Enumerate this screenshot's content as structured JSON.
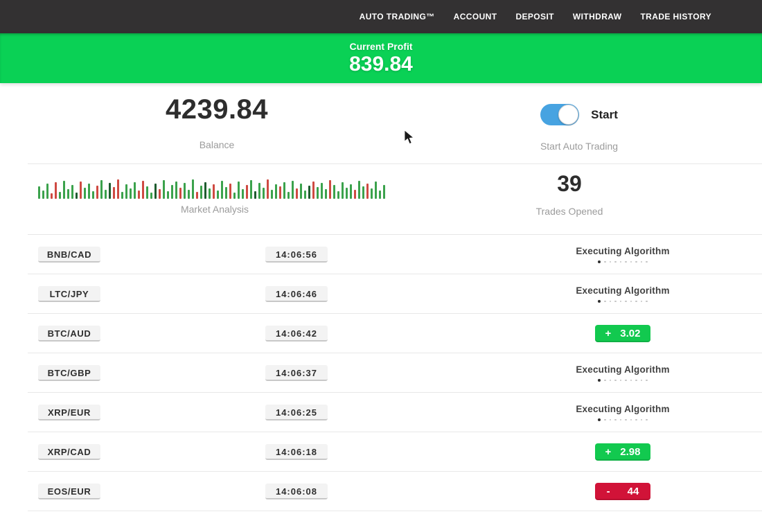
{
  "nav": {
    "items": [
      {
        "label": "AUTO TRADING™",
        "name": "auto-trading"
      },
      {
        "label": "ACCOUNT",
        "name": "account"
      },
      {
        "label": "DEPOSIT",
        "name": "deposit"
      },
      {
        "label": "WITHDRAW",
        "name": "withdraw"
      },
      {
        "label": "TRADE HISTORY",
        "name": "trade-history"
      }
    ]
  },
  "banner": {
    "label": "Current Profit",
    "value": "839.84"
  },
  "stats": {
    "balance": {
      "value": "4239.84",
      "label": "Balance"
    },
    "auto_trading": {
      "toggle_state": "on",
      "toggle_label": "Start",
      "label": "Start Auto Trading"
    },
    "trades_opened": {
      "value": "39",
      "label": "Trades Opened"
    }
  },
  "market_analysis": {
    "label": "Market Analysis",
    "bars": [
      [
        18,
        "g"
      ],
      [
        12,
        "g"
      ],
      [
        22,
        "g"
      ],
      [
        8,
        "r"
      ],
      [
        24,
        "r"
      ],
      [
        10,
        "g"
      ],
      [
        26,
        "g"
      ],
      [
        14,
        "g"
      ],
      [
        20,
        "g"
      ],
      [
        9,
        "d"
      ],
      [
        25,
        "r"
      ],
      [
        16,
        "g"
      ],
      [
        22,
        "g"
      ],
      [
        11,
        "g"
      ],
      [
        19,
        "r"
      ],
      [
        27,
        "g"
      ],
      [
        13,
        "g"
      ],
      [
        23,
        "d"
      ],
      [
        17,
        "r"
      ],
      [
        28,
        "r"
      ],
      [
        10,
        "g"
      ],
      [
        21,
        "g"
      ],
      [
        15,
        "g"
      ],
      [
        24,
        "g"
      ],
      [
        12,
        "r"
      ],
      [
        26,
        "r"
      ],
      [
        18,
        "g"
      ],
      [
        9,
        "g"
      ],
      [
        22,
        "d"
      ],
      [
        14,
        "r"
      ],
      [
        27,
        "g"
      ],
      [
        11,
        "g"
      ],
      [
        20,
        "g"
      ],
      [
        25,
        "g"
      ],
      [
        16,
        "r"
      ],
      [
        23,
        "g"
      ],
      [
        13,
        "g"
      ],
      [
        28,
        "g"
      ],
      [
        10,
        "r"
      ],
      [
        19,
        "g"
      ],
      [
        24,
        "d"
      ],
      [
        15,
        "g"
      ],
      [
        21,
        "r"
      ],
      [
        12,
        "g"
      ],
      [
        26,
        "g"
      ],
      [
        17,
        "g"
      ],
      [
        22,
        "r"
      ],
      [
        9,
        "g"
      ],
      [
        25,
        "g"
      ],
      [
        14,
        "g"
      ],
      [
        20,
        "r"
      ],
      [
        27,
        "g"
      ],
      [
        11,
        "d"
      ],
      [
        23,
        "g"
      ],
      [
        16,
        "g"
      ],
      [
        28,
        "r"
      ],
      [
        13,
        "g"
      ],
      [
        21,
        "g"
      ],
      [
        18,
        "r"
      ],
      [
        24,
        "g"
      ],
      [
        10,
        "g"
      ],
      [
        26,
        "g"
      ],
      [
        15,
        "r"
      ],
      [
        22,
        "g"
      ],
      [
        12,
        "g"
      ],
      [
        19,
        "d"
      ],
      [
        25,
        "r"
      ],
      [
        17,
        "g"
      ],
      [
        23,
        "g"
      ],
      [
        14,
        "g"
      ],
      [
        27,
        "r"
      ],
      [
        20,
        "g"
      ],
      [
        11,
        "g"
      ],
      [
        24,
        "g"
      ],
      [
        16,
        "g"
      ],
      [
        21,
        "g"
      ],
      [
        13,
        "r"
      ],
      [
        26,
        "g"
      ],
      [
        18,
        "g"
      ],
      [
        22,
        "r"
      ],
      [
        15,
        "g"
      ],
      [
        25,
        "g"
      ],
      [
        12,
        "g"
      ],
      [
        20,
        "g"
      ]
    ]
  },
  "trades": {
    "rows": [
      {
        "pair": "BNB/CAD",
        "time": "14:06:56",
        "status": {
          "type": "executing",
          "label": "Executing Algorithm"
        }
      },
      {
        "pair": "LTC/JPY",
        "time": "14:06:46",
        "status": {
          "type": "executing",
          "label": "Executing Algorithm"
        }
      },
      {
        "pair": "BTC/AUD",
        "time": "14:06:42",
        "status": {
          "type": "profit",
          "sign": "+",
          "value": "3.02"
        }
      },
      {
        "pair": "BTC/GBP",
        "time": "14:06:37",
        "status": {
          "type": "executing",
          "label": "Executing Algorithm"
        }
      },
      {
        "pair": "XRP/EUR",
        "time": "14:06:25",
        "status": {
          "type": "executing",
          "label": "Executing Algorithm"
        }
      },
      {
        "pair": "XRP/CAD",
        "time": "14:06:18",
        "status": {
          "type": "profit",
          "sign": "+",
          "value": "2.98"
        }
      },
      {
        "pair": "EOS/EUR",
        "time": "14:06:08",
        "status": {
          "type": "loss",
          "sign": "-",
          "value": "44"
        }
      }
    ]
  },
  "colors": {
    "nav_bg": "#333132",
    "banner_green": "#0ad155",
    "profit_green": "#12c94f",
    "loss_red": "#d11338",
    "toggle_blue": "#47a3e1",
    "bar_green": "#3ba24c",
    "bar_red": "#cf4a42",
    "bar_dark": "#1e5c2f"
  }
}
